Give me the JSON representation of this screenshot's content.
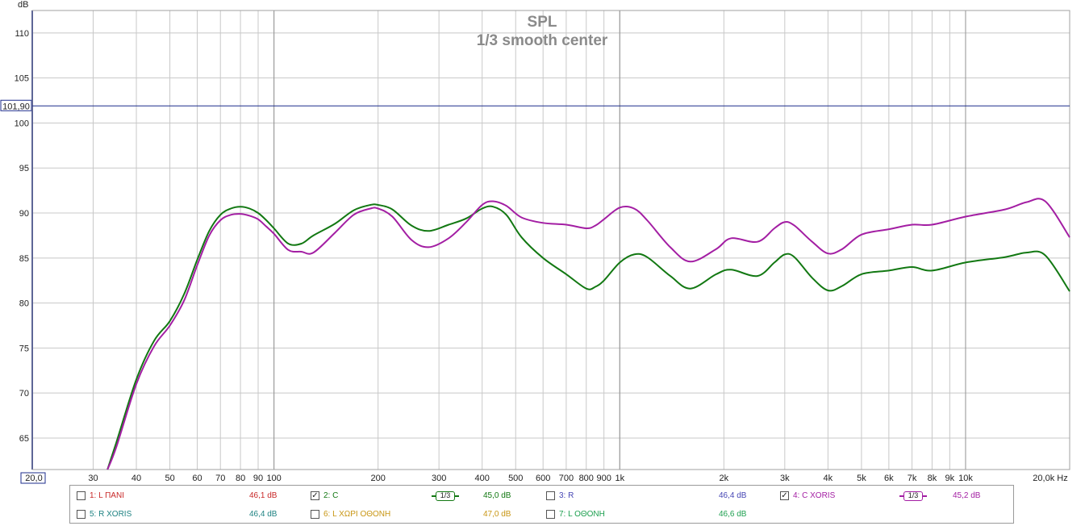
{
  "chart_data": {
    "type": "line",
    "title": "SPL",
    "subtitle": "1/3 smooth center",
    "ylabel": "dB",
    "xunit": "Hz",
    "x_scale": "log",
    "xlim": [
      20,
      20000
    ],
    "ylim": [
      61.5,
      112.5
    ],
    "grid": true,
    "y_ticks": [
      "110",
      "105",
      "100",
      "95",
      "90",
      "85",
      "80",
      "75",
      "70",
      "65"
    ],
    "x_ticks": [
      "30",
      "40",
      "50",
      "60",
      "70",
      "80",
      "90",
      "100",
      "200",
      "300",
      "400",
      "500",
      "600",
      "700",
      "800",
      "900",
      "1k",
      "2k",
      "3k",
      "4k",
      "5k",
      "6k",
      "7k",
      "8k",
      "9k",
      "10k",
      "20,0k Hz"
    ],
    "x_min_label": "20,0",
    "reference_line": {
      "value": 101.9,
      "label": "101,90",
      "color": "#1c2c8c"
    },
    "series": [
      {
        "name": "2: C",
        "color": "#127812",
        "x": [
          20,
          33,
          35,
          40,
          45,
          50,
          55,
          60,
          65,
          70,
          75,
          80,
          85,
          90,
          95,
          100,
          110,
          120,
          130,
          150,
          170,
          190,
          200,
          220,
          250,
          280,
          320,
          360,
          400,
          430,
          470,
          520,
          600,
          700,
          800,
          850,
          900,
          1000,
          1100,
          1200,
          1400,
          1600,
          1900,
          2100,
          2500,
          2800,
          3000,
          3200,
          3600,
          4000,
          4400,
          5000,
          6000,
          7000,
          8000,
          10000,
          13000,
          15000,
          17000,
          20000
        ],
        "values": [
          null,
          61.5,
          64.5,
          71.5,
          75.8,
          78.0,
          81.0,
          84.8,
          88.0,
          89.8,
          90.5,
          90.7,
          90.5,
          90.0,
          89.2,
          88.3,
          86.6,
          86.6,
          87.5,
          88.8,
          90.3,
          90.9,
          90.9,
          90.4,
          88.6,
          88.0,
          88.7,
          89.4,
          90.5,
          90.7,
          89.8,
          87.3,
          85.0,
          83.2,
          81.6,
          81.8,
          82.5,
          84.5,
          85.4,
          85.1,
          83.0,
          81.6,
          83.2,
          83.7,
          83.0,
          84.5,
          85.4,
          85.1,
          82.8,
          81.4,
          81.9,
          83.2,
          83.6,
          84.0,
          83.6,
          84.5,
          85.1,
          85.6,
          85.3,
          81.3
        ]
      },
      {
        "name": "4: C XORIS",
        "color": "#a31ea3",
        "x": [
          20,
          33,
          35,
          40,
          45,
          50,
          55,
          60,
          65,
          70,
          75,
          80,
          85,
          90,
          95,
          100,
          110,
          120,
          130,
          150,
          170,
          190,
          200,
          220,
          250,
          280,
          320,
          360,
          400,
          430,
          470,
          520,
          600,
          700,
          800,
          850,
          900,
          1000,
          1100,
          1200,
          1400,
          1600,
          1900,
          2100,
          2500,
          2800,
          3000,
          3200,
          3600,
          4000,
          4400,
          5000,
          6000,
          7000,
          8000,
          10000,
          13000,
          15000,
          17000,
          20000
        ],
        "values": [
          null,
          61.5,
          64.0,
          71.0,
          75.2,
          77.5,
          80.3,
          84.2,
          87.5,
          89.2,
          89.8,
          89.9,
          89.7,
          89.3,
          88.5,
          87.7,
          85.9,
          85.7,
          85.6,
          87.8,
          89.8,
          90.5,
          90.5,
          89.6,
          87.0,
          86.2,
          87.2,
          89.0,
          90.9,
          91.3,
          90.8,
          89.5,
          88.9,
          88.7,
          88.3,
          88.6,
          89.3,
          90.6,
          90.5,
          89.2,
          86.2,
          84.6,
          86.0,
          87.2,
          86.8,
          88.3,
          89.0,
          88.6,
          86.8,
          85.5,
          86.0,
          87.6,
          88.2,
          88.7,
          88.7,
          89.6,
          90.4,
          91.2,
          91.3,
          87.3
        ]
      }
    ]
  },
  "legend": {
    "items": [
      {
        "label": "1: L ΠΑΝΙ",
        "value": "46,1 dB",
        "checked": false,
        "smooth": "",
        "color": "#c82828"
      },
      {
        "label": "2: C",
        "value": "45,0 dB",
        "checked": true,
        "smooth": "1/3",
        "color": "#127812"
      },
      {
        "label": "3: R",
        "value": "46,4 dB",
        "checked": false,
        "smooth": "",
        "color": "#4646b4"
      },
      {
        "label": "4: C XORIS",
        "value": "45,2 dB",
        "checked": true,
        "smooth": "1/3",
        "color": "#a31ea3"
      },
      {
        "label": "5: R XORIS",
        "value": "46,4 dB",
        "checked": false,
        "smooth": "",
        "color": "#1e8282"
      },
      {
        "label": "6: L ΧΩΡΙ ΟΘΟΝΗ",
        "value": "47,0 dB",
        "checked": false,
        "smooth": "",
        "color": "#c89614"
      },
      {
        "label": "7: L ΟΘΟΝΗ",
        "value": "46,6 dB",
        "checked": false,
        "smooth": "",
        "color": "#1ea050"
      }
    ]
  }
}
